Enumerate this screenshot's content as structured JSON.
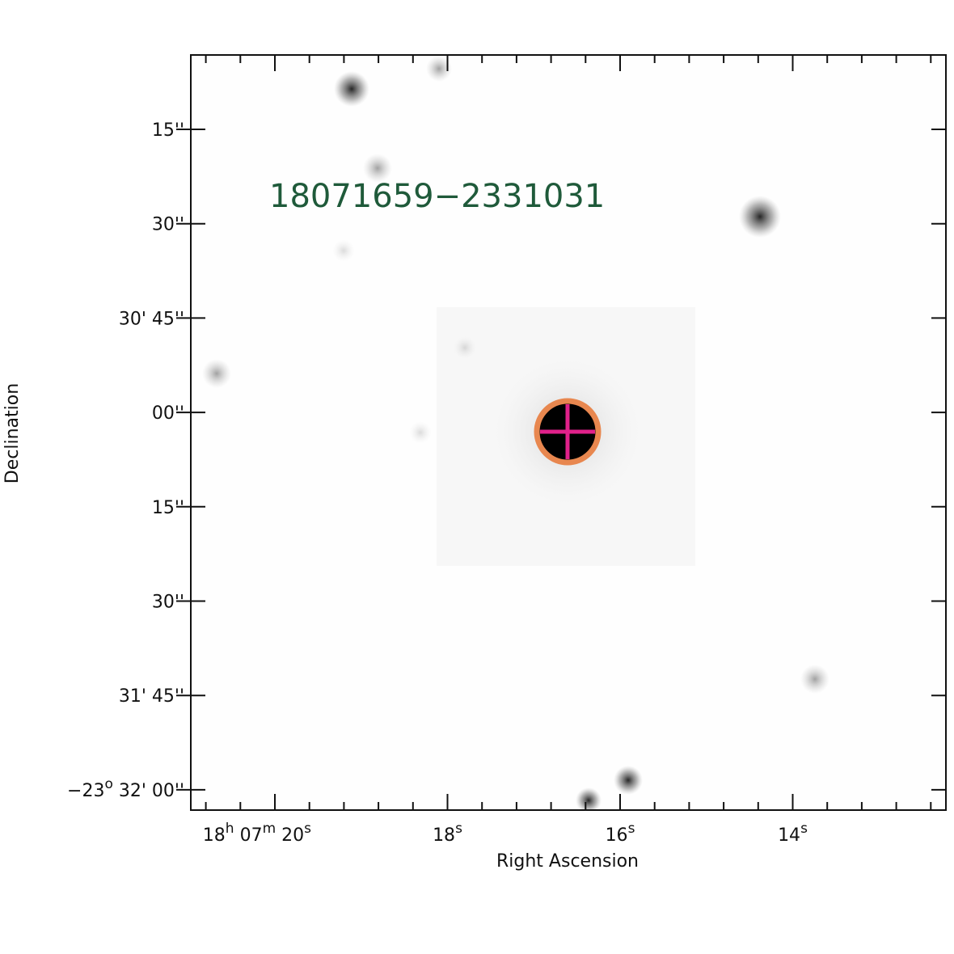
{
  "image": {
    "label": "18071659−2331031"
  },
  "x_axis": {
    "title": "Right Ascension",
    "ticks": [
      [
        {
          "text": "18"
        },
        {
          "sup": "h"
        },
        {
          "text": " 07"
        },
        {
          "sup": "m"
        },
        {
          "text": " 20"
        },
        {
          "sup": "s"
        }
      ],
      [
        {
          "text": "18"
        },
        {
          "sup": "s"
        }
      ],
      [
        {
          "text": "16"
        },
        {
          "sup": "s"
        }
      ],
      [
        {
          "text": "14"
        },
        {
          "sup": "s"
        }
      ]
    ]
  },
  "y_axis": {
    "title": "Declination",
    "ticks": [
      [
        {
          "text": "15''"
        }
      ],
      [
        {
          "text": "30''"
        }
      ],
      [
        {
          "text": "30' 45''"
        }
      ],
      [
        {
          "text": "00''"
        }
      ],
      [
        {
          "text": "15''"
        }
      ],
      [
        {
          "text": "30''"
        }
      ],
      [
        {
          "text": "31' 45''"
        }
      ],
      [
        {
          "text": "−23"
        },
        {
          "sup": "o"
        },
        {
          "text": " 32' 00''"
        }
      ]
    ]
  }
}
